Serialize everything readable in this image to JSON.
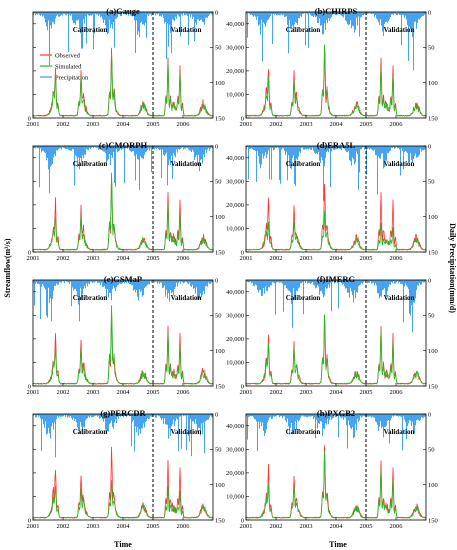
{
  "figure": {
    "ylabel_left": "Streamflow(m³/s)",
    "ylabel_right": "Daily Precipitation(mm/d)",
    "xlabel": "Time"
  },
  "legend": {
    "observed": "Observed",
    "simulated": "Simulated",
    "precipitation": "Precipitation"
  },
  "colors": {
    "observed": "#ff3333",
    "simulated": "#22bb22",
    "precipitation": "#3399ee"
  },
  "chart_data": [
    {
      "type": "line",
      "title": "(a)Gauge",
      "x_ticks": [
        "2001",
        "2002",
        "2003",
        "2004",
        "2005",
        "2006"
      ],
      "ylim": [
        0,
        45000
      ],
      "y_ticks": [
        0,
        10000,
        20000,
        30000,
        40000
      ],
      "y_ticks_labels": [
        "0",
        "",
        "",
        "",
        ""
      ],
      "y2lim": [
        0,
        150
      ],
      "y2_ticks": [
        0,
        50,
        100,
        150
      ],
      "split_year": 2005,
      "periods": [
        "Calibration",
        "Validation"
      ],
      "series": [
        {
          "name": "Observed",
          "peaks": [
            [
              2001.75,
              18000
            ],
            [
              2002.6,
              15000
            ],
            [
              2003.62,
              26000
            ],
            [
              2005.5,
              24000
            ],
            [
              2005.9,
              21000
            ]
          ]
        },
        {
          "name": "Simulated",
          "peaks": [
            [
              2001.75,
              16000
            ],
            [
              2002.6,
              13000
            ],
            [
              2003.62,
              25000
            ],
            [
              2005.5,
              22000
            ],
            [
              2005.9,
              18000
            ]
          ]
        }
      ]
    },
    {
      "type": "line",
      "title": "(b)CHIRPS",
      "x_ticks": [
        "2001",
        "2002",
        "2003",
        "2004",
        "2005",
        "2006"
      ],
      "ylim": [
        0,
        45000
      ],
      "y_ticks": [
        0,
        10000,
        20000,
        30000,
        40000
      ],
      "y_ticks_labels": [
        "0",
        "10,000",
        "20,000",
        "30,000",
        "40,000"
      ],
      "y2lim": [
        0,
        150
      ],
      "y2_ticks": [
        0,
        50,
        100,
        150
      ],
      "split_year": 2005,
      "periods": [
        "Calibration",
        "Validation"
      ],
      "series": [
        {
          "name": "Observed",
          "peaks": [
            [
              2001.75,
              18000
            ],
            [
              2002.6,
              15000
            ],
            [
              2003.62,
              26000
            ],
            [
              2005.5,
              24000
            ],
            [
              2005.9,
              21000
            ]
          ]
        },
        {
          "name": "Simulated",
          "peaks": [
            [
              2001.75,
              14000
            ],
            [
              2002.6,
              12000
            ],
            [
              2003.62,
              28000
            ],
            [
              2005.5,
              20000
            ],
            [
              2005.9,
              17000
            ]
          ]
        }
      ]
    },
    {
      "type": "line",
      "title": "(c)CMORPH",
      "x_ticks": [
        "2001",
        "2002",
        "2003",
        "2004",
        "2005",
        "2006"
      ],
      "ylim": [
        0,
        45000
      ],
      "y_ticks": [
        0,
        10000,
        20000,
        30000,
        40000
      ],
      "y_ticks_labels": [
        "0",
        "",
        "",
        "",
        ""
      ],
      "y2lim": [
        0,
        150
      ],
      "y2_ticks": [
        0,
        50,
        100,
        150
      ],
      "split_year": 2005,
      "periods": [
        "Calibration",
        "Validation"
      ],
      "series": [
        {
          "name": "Observed",
          "peaks": [
            [
              2001.75,
              18000
            ],
            [
              2002.6,
              15000
            ],
            [
              2003.62,
              26000
            ],
            [
              2005.5,
              24000
            ],
            [
              2005.9,
              21000
            ]
          ]
        },
        {
          "name": "Simulated",
          "peaks": [
            [
              2001.75,
              12000
            ],
            [
              2002.6,
              11000
            ],
            [
              2003.62,
              30000
            ],
            [
              2005.5,
              19000
            ],
            [
              2005.9,
              15000
            ]
          ]
        }
      ]
    },
    {
      "type": "line",
      "title": "(d)ERA5L",
      "x_ticks": [
        "2001",
        "2002",
        "2003",
        "2004",
        "2005",
        "2006"
      ],
      "ylim": [
        0,
        45000
      ],
      "y_ticks": [
        0,
        10000,
        20000,
        30000,
        40000
      ],
      "y_ticks_labels": [
        "0",
        "10,000",
        "20,000",
        "30,000",
        "40,000"
      ],
      "y2lim": [
        0,
        150
      ],
      "y2_ticks": [
        0,
        50,
        100,
        150
      ],
      "split_year": 2005,
      "periods": [
        "Calibration",
        "Validation"
      ],
      "series": [
        {
          "name": "Observed",
          "peaks": [
            [
              2001.75,
              18000
            ],
            [
              2002.6,
              15000
            ],
            [
              2003.62,
              26000
            ],
            [
              2005.5,
              24000
            ],
            [
              2005.9,
              21000
            ]
          ]
        },
        {
          "name": "Simulated",
          "peaks": [
            [
              2001.75,
              8000
            ],
            [
              2002.6,
              9000
            ],
            [
              2003.62,
              13000
            ],
            [
              2005.5,
              11000
            ],
            [
              2005.9,
              9000
            ]
          ]
        }
      ]
    },
    {
      "type": "line",
      "title": "(e)GSMaP",
      "x_ticks": [
        "2001",
        "2002",
        "2003",
        "2004",
        "2005",
        "2006"
      ],
      "ylim": [
        0,
        45000
      ],
      "y_ticks": [
        0,
        10000,
        20000,
        30000,
        40000
      ],
      "y_ticks_labels": [
        "0",
        "",
        "",
        "",
        ""
      ],
      "y2lim": [
        0,
        150
      ],
      "y2_ticks": [
        0,
        50,
        100,
        150
      ],
      "split_year": 2005,
      "periods": [
        "Calibration",
        "Validation"
      ],
      "series": [
        {
          "name": "Observed",
          "peaks": [
            [
              2001.75,
              18000
            ],
            [
              2002.6,
              15000
            ],
            [
              2003.62,
              26000
            ],
            [
              2005.5,
              24000
            ],
            [
              2005.9,
              21000
            ]
          ]
        },
        {
          "name": "Simulated",
          "peaks": [
            [
              2001.75,
              13000
            ],
            [
              2002.6,
              12000
            ],
            [
              2003.62,
              32000
            ],
            [
              2005.5,
              21000
            ],
            [
              2005.9,
              16000
            ]
          ]
        }
      ]
    },
    {
      "type": "line",
      "title": "(f)IMERG",
      "x_ticks": [
        "2001",
        "2002",
        "2003",
        "2004",
        "2005",
        "2006"
      ],
      "ylim": [
        0,
        45000
      ],
      "y_ticks": [
        0,
        10000,
        20000,
        30000,
        40000
      ],
      "y_ticks_labels": [
        "0",
        "10,000",
        "20,000",
        "30,000",
        "40,000"
      ],
      "y2lim": [
        0,
        150
      ],
      "y2_ticks": [
        0,
        50,
        100,
        150
      ],
      "split_year": 2005,
      "periods": [
        "Calibration",
        "Validation"
      ],
      "series": [
        {
          "name": "Observed",
          "peaks": [
            [
              2001.75,
              18000
            ],
            [
              2002.6,
              15000
            ],
            [
              2003.62,
              26000
            ],
            [
              2005.5,
              24000
            ],
            [
              2005.9,
              21000
            ]
          ]
        },
        {
          "name": "Simulated",
          "peaks": [
            [
              2001.75,
              14000
            ],
            [
              2002.6,
              13000
            ],
            [
              2003.62,
              27000
            ],
            [
              2005.5,
              22000
            ],
            [
              2005.9,
              17000
            ]
          ]
        }
      ]
    },
    {
      "type": "line",
      "title": "(g)PERCDR",
      "x_ticks": [
        "2001",
        "2002",
        "2003",
        "2004",
        "2005",
        "2006"
      ],
      "ylim": [
        0,
        45000
      ],
      "y_ticks": [
        0,
        10000,
        20000,
        30000,
        40000
      ],
      "y_ticks_labels": [
        "0",
        "",
        "",
        "",
        ""
      ],
      "y2lim": [
        0,
        150
      ],
      "y2_ticks": [
        0,
        50,
        100,
        150
      ],
      "split_year": 2005,
      "periods": [
        "Calibration",
        "Validation"
      ],
      "series": [
        {
          "name": "Observed",
          "peaks": [
            [
              2001.75,
              18000
            ],
            [
              2002.6,
              15000
            ],
            [
              2003.62,
              26000
            ],
            [
              2005.5,
              24000
            ],
            [
              2005.9,
              21000
            ]
          ]
        },
        {
          "name": "Simulated",
          "peaks": [
            [
              2001.75,
              11000
            ],
            [
              2002.6,
              10000
            ],
            [
              2003.62,
              13000
            ],
            [
              2005.5,
              13000
            ],
            [
              2005.9,
              11000
            ]
          ]
        }
      ]
    },
    {
      "type": "line",
      "title": "(h)PXGB2",
      "x_ticks": [
        "2001",
        "2002",
        "2003",
        "2004",
        "2005",
        "2006"
      ],
      "ylim": [
        0,
        45000
      ],
      "y_ticks": [
        0,
        10000,
        20000,
        30000,
        40000
      ],
      "y_ticks_labels": [
        "0",
        "10,000",
        "20,000",
        "30,000",
        "40,000"
      ],
      "y2lim": [
        0,
        150
      ],
      "y2_ticks": [
        0,
        50,
        100,
        150
      ],
      "split_year": 2005,
      "periods": [
        "Calibration",
        "Validation"
      ],
      "series": [
        {
          "name": "Observed",
          "peaks": [
            [
              2001.75,
              18000
            ],
            [
              2002.6,
              15000
            ],
            [
              2003.62,
              26000
            ],
            [
              2005.5,
              24000
            ],
            [
              2005.9,
              21000
            ]
          ]
        },
        {
          "name": "Simulated",
          "peaks": [
            [
              2001.75,
              12000
            ],
            [
              2002.6,
              11000
            ],
            [
              2003.62,
              25000
            ],
            [
              2005.5,
              20000
            ],
            [
              2005.9,
              16000
            ]
          ]
        }
      ]
    }
  ]
}
